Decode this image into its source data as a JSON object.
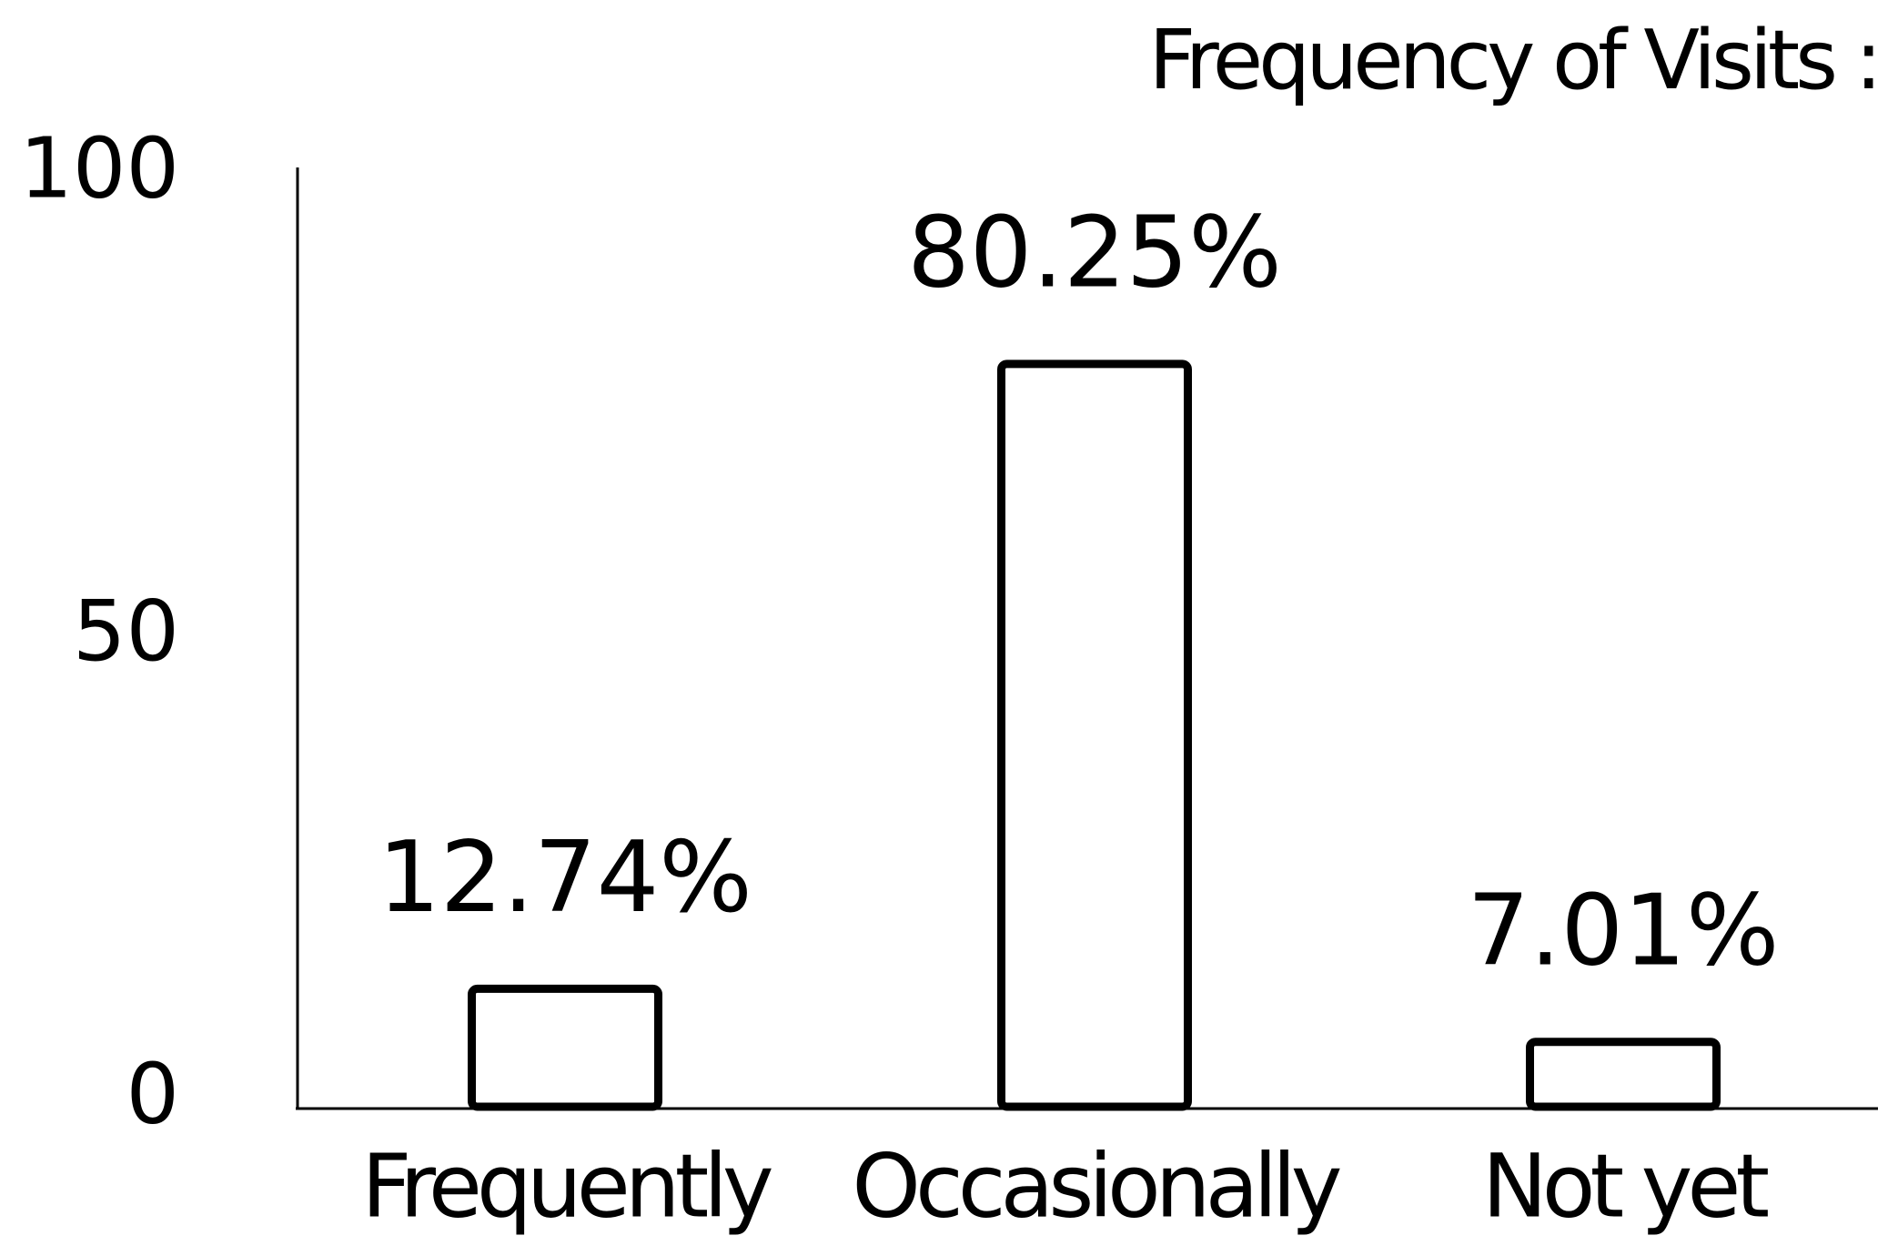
{
  "chart_data": {
    "type": "bar",
    "title": "Frequency of Visits :",
    "categories": [
      "Frequently",
      "Occasionally",
      "Not yet"
    ],
    "values": [
      12.74,
      80.25,
      7.01
    ],
    "value_labels": [
      "12.74%",
      "80.25%",
      "7.01%"
    ],
    "color": "#ffffff",
    "ylim": [
      0,
      100
    ],
    "yticks": [
      0,
      50,
      100
    ],
    "grid": false
  }
}
